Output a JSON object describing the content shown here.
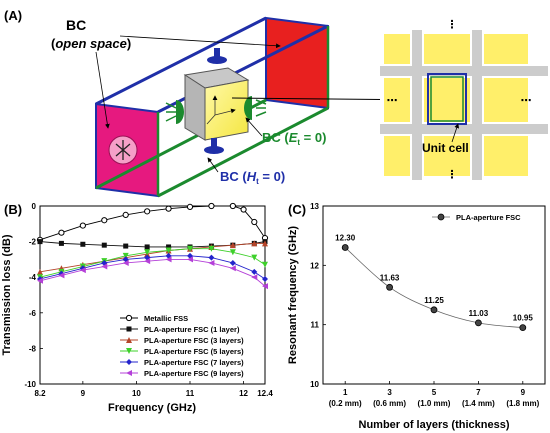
{
  "figure_a": {
    "panel_label": "(A)",
    "bc_open_space": {
      "line1": "BC",
      "line2": "open space"
    },
    "bc_et": {
      "prefix": "BC (",
      "sym": "E",
      "sub": "t",
      "suffix": " = 0)"
    },
    "bc_ht": {
      "prefix": "BC (",
      "sym": "H",
      "sub": "t",
      "suffix": " = 0)"
    },
    "unit_cell_label": "Unit cell",
    "colors": {
      "pec_red": "#e8201f",
      "magenta": "#e6197f",
      "pmc_blue": "#1f2fa8",
      "pec_green": "#1b8a2e",
      "cell_yellow": "#ffef6a",
      "cell_gray": "#cccccc"
    }
  },
  "chart_b": {
    "panel_label": "(B)",
    "type": "line",
    "xlabel": "Frequency (GHz)",
    "ylabel": "Transmission loss (dB)",
    "xlim": [
      8.2,
      12.4
    ],
    "ylim": [
      -10,
      0
    ],
    "xticks": [
      "8.2",
      "9",
      "10",
      "11",
      "12",
      "12.4"
    ],
    "yticks": [
      "0",
      "-2",
      "-4",
      "-6",
      "-8",
      "-10"
    ],
    "legend_position": "bottom-right",
    "series": [
      {
        "name": "Metallic FSS",
        "color": "#000000",
        "marker": "circle-open",
        "x": [
          8.2,
          8.6,
          9.0,
          9.4,
          9.8,
          10.2,
          10.6,
          11.0,
          11.4,
          11.8,
          12.0,
          12.2,
          12.4
        ],
        "y": [
          -1.9,
          -1.5,
          -1.1,
          -0.8,
          -0.5,
          -0.3,
          -0.15,
          -0.05,
          0,
          0,
          -0.2,
          -0.9,
          -1.8
        ]
      },
      {
        "name": "PLA-aperture FSC (1 layer)",
        "color": "#111111",
        "marker": "square",
        "x": [
          8.2,
          8.6,
          9.0,
          9.4,
          9.8,
          10.2,
          10.6,
          11.0,
          11.4,
          11.8,
          12.2,
          12.4
        ],
        "y": [
          -2.0,
          -2.1,
          -2.15,
          -2.2,
          -2.25,
          -2.3,
          -2.3,
          -2.3,
          -2.25,
          -2.2,
          -2.1,
          -2.0
        ]
      },
      {
        "name": "PLA-aperture FSC (3 layers)",
        "color": "#b5452a",
        "marker": "triangle-up",
        "x": [
          8.2,
          8.6,
          9.0,
          9.4,
          9.8,
          10.2,
          10.6,
          11.0,
          11.4,
          11.8,
          12.2,
          12.4
        ],
        "y": [
          -3.7,
          -3.5,
          -3.3,
          -3.1,
          -2.9,
          -2.7,
          -2.5,
          -2.4,
          -2.3,
          -2.2,
          -2.1,
          -2.1
        ]
      },
      {
        "name": "PLA-aperture FSC (5 layers)",
        "color": "#3ed02a",
        "marker": "triangle-down",
        "x": [
          8.2,
          8.6,
          9.0,
          9.4,
          9.8,
          10.2,
          10.6,
          11.0,
          11.4,
          11.8,
          12.2,
          12.4
        ],
        "y": [
          -4.0,
          -3.7,
          -3.4,
          -3.1,
          -2.8,
          -2.6,
          -2.5,
          -2.4,
          -2.4,
          -2.6,
          -2.9,
          -3.3
        ]
      },
      {
        "name": "PLA-aperture FSC (7 layers)",
        "color": "#2424cc",
        "marker": "diamond",
        "x": [
          8.2,
          8.6,
          9.0,
          9.4,
          9.8,
          10.2,
          10.6,
          11.0,
          11.4,
          11.8,
          12.2,
          12.4
        ],
        "y": [
          -4.1,
          -3.8,
          -3.5,
          -3.2,
          -3.0,
          -2.9,
          -2.8,
          -2.8,
          -2.9,
          -3.2,
          -3.7,
          -4.1
        ]
      },
      {
        "name": "PLA-aperture FSC (9 layers)",
        "color": "#b440d8",
        "marker": "triangle-left",
        "x": [
          8.2,
          8.6,
          9.0,
          9.4,
          9.8,
          10.2,
          10.6,
          11.0,
          11.4,
          11.8,
          12.2,
          12.4
        ],
        "y": [
          -4.2,
          -3.9,
          -3.6,
          -3.4,
          -3.2,
          -3.1,
          -3.0,
          -3.0,
          -3.2,
          -3.5,
          -4.0,
          -4.5
        ]
      }
    ]
  },
  "chart_c": {
    "panel_label": "(C)",
    "type": "line",
    "xlabel": "Number of layers (thickness)",
    "ylabel": "Resonant frequency (GHz)",
    "ylim": [
      10,
      13
    ],
    "yticks": [
      "10",
      "11",
      "12",
      "13"
    ],
    "x_positions": [
      1,
      3,
      5,
      7,
      9
    ],
    "xticks": [
      "1",
      "3",
      "5",
      "7",
      "9"
    ],
    "xtick_sublabels": [
      "(0.2 mm)",
      "(0.6 mm)",
      "(1.0 mm)",
      "(1.4 mm)",
      "(1.8 mm)"
    ],
    "legend_position": "top-right",
    "series": [
      {
        "name": "PLA-aperture FSC",
        "color": "#000000",
        "x": [
          1,
          3,
          5,
          7,
          9
        ],
        "y": [
          12.3,
          11.63,
          11.25,
          11.03,
          10.95
        ],
        "labels": [
          "12.30",
          "11.63",
          "11.25",
          "11.03",
          "10.95"
        ]
      }
    ]
  }
}
